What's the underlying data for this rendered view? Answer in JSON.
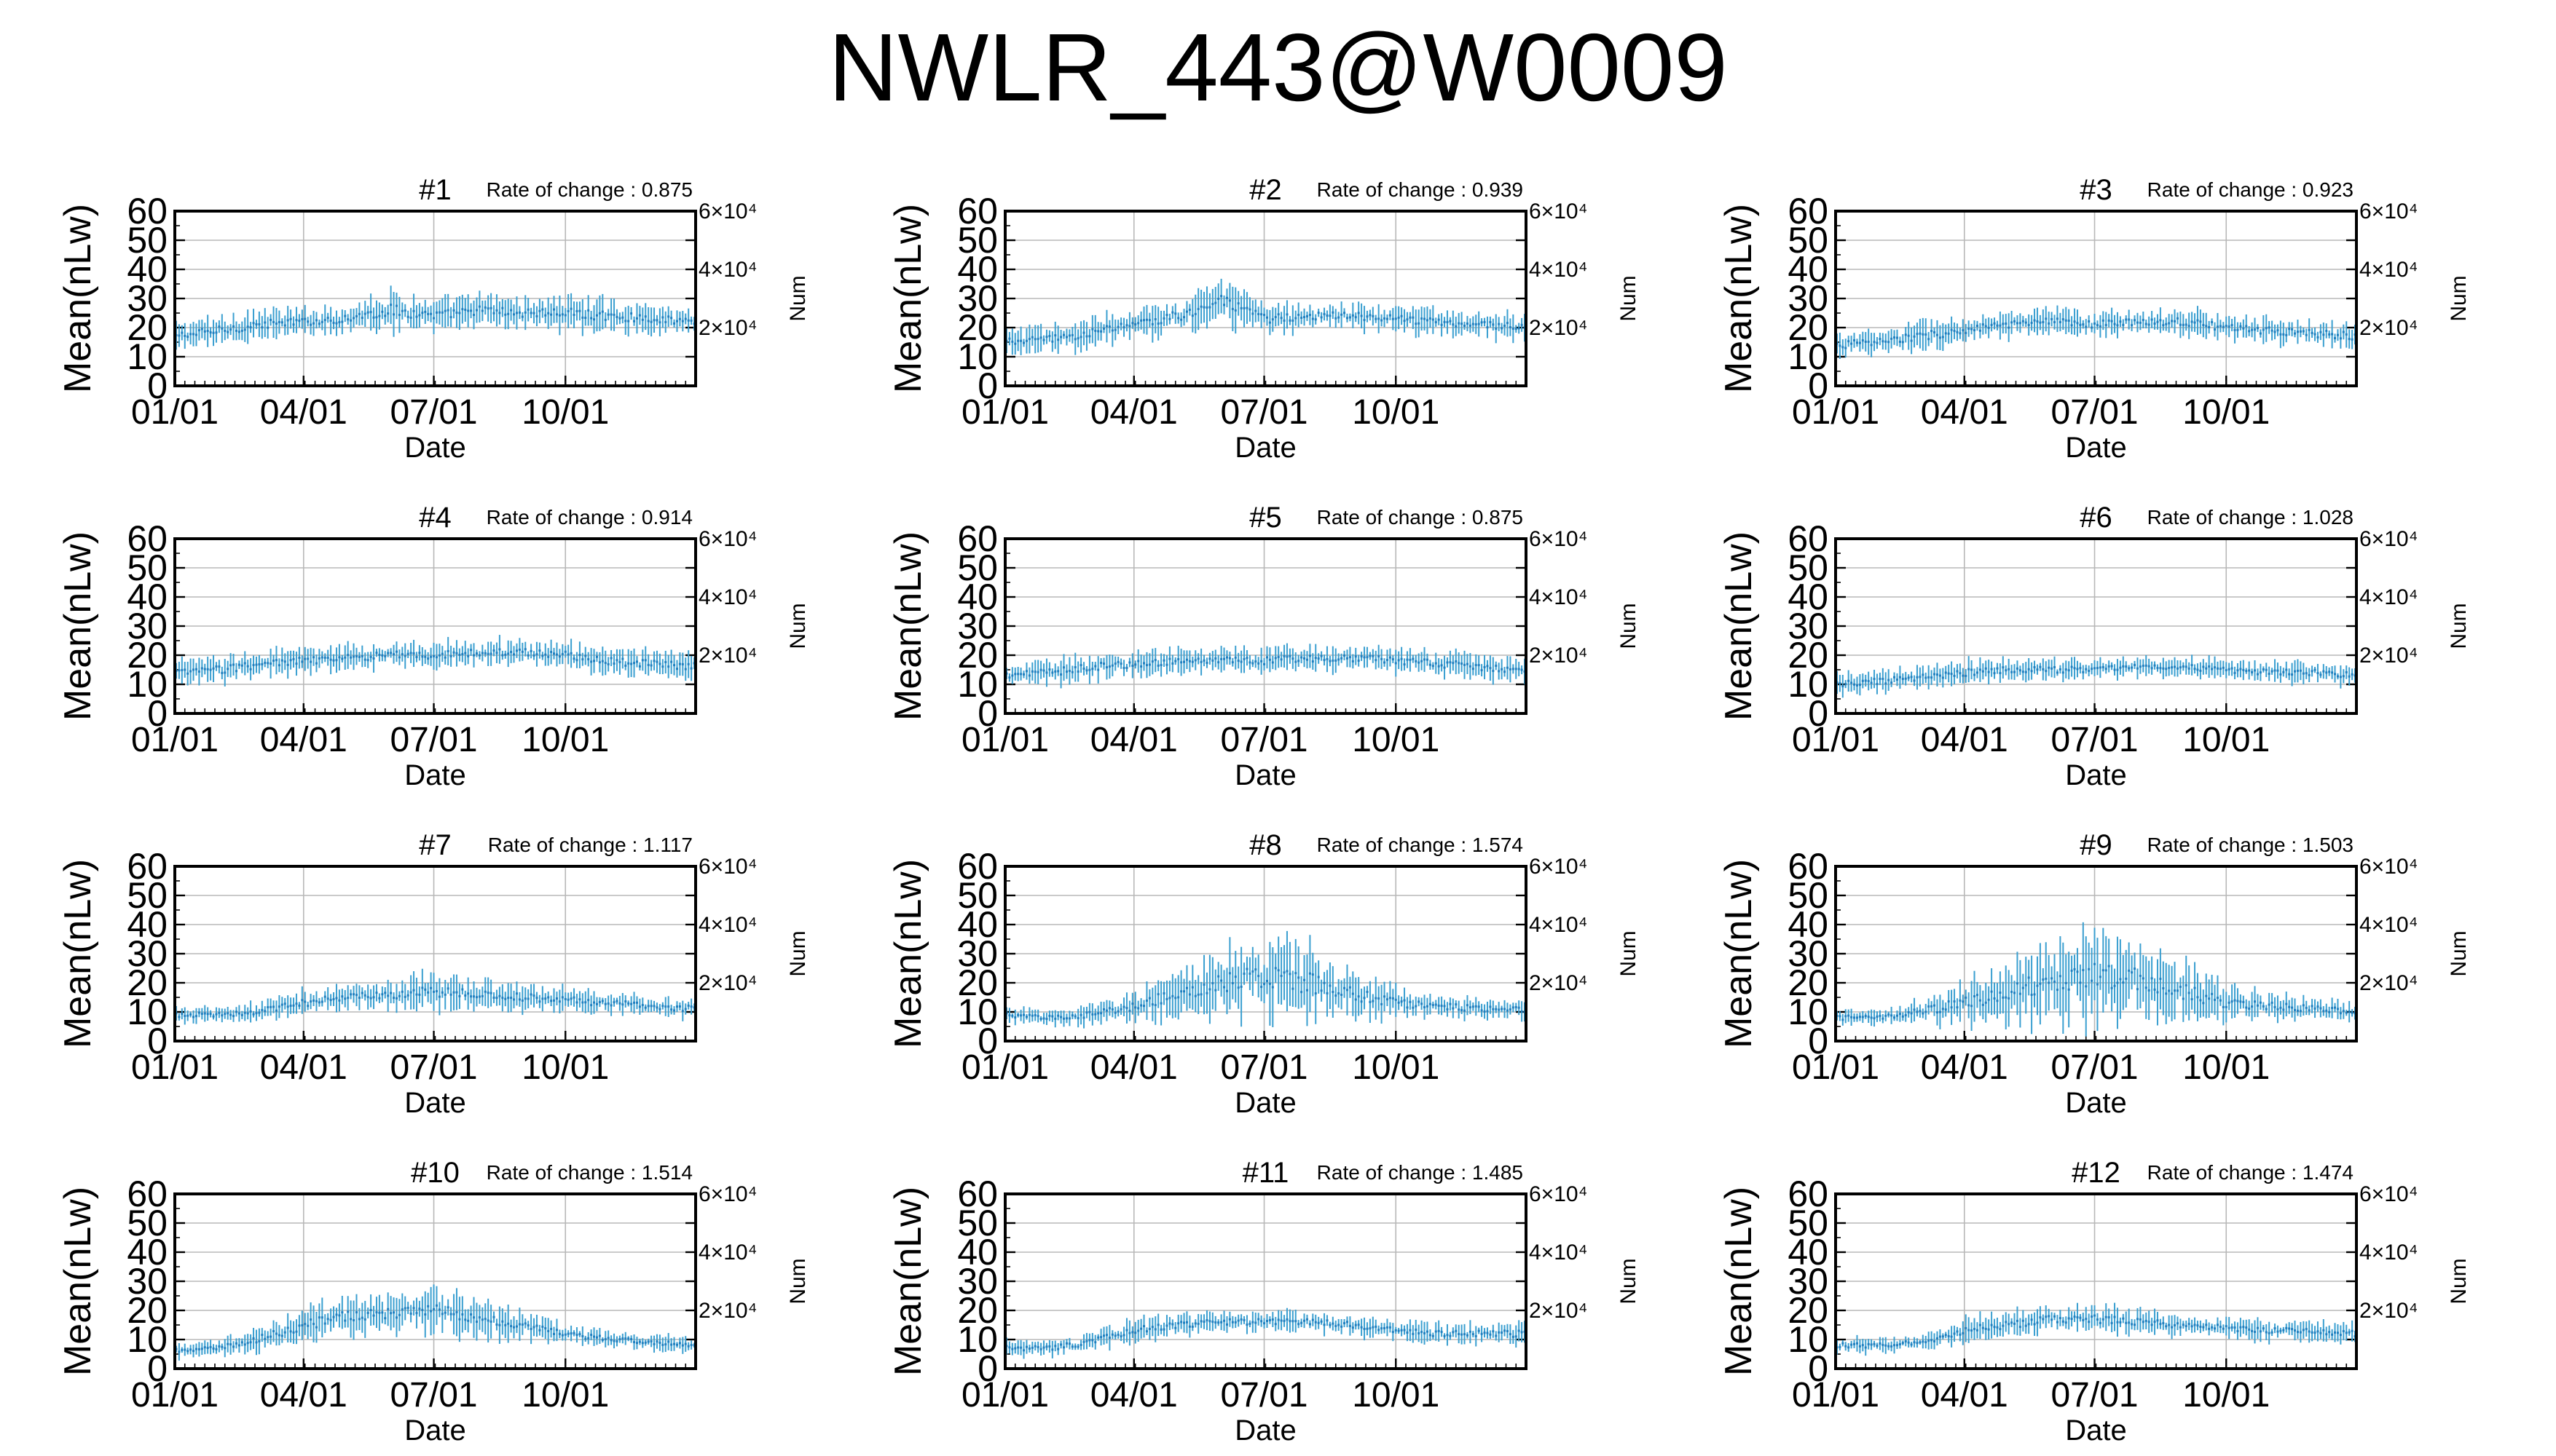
{
  "page": {
    "title": "NWLR_443@W0009"
  },
  "axis_text": {
    "ylabel": "Mean(nLw)",
    "xlabel": "Date",
    "right_label": "Num",
    "y_ticks": [
      "0",
      "10",
      "20",
      "30",
      "40",
      "50",
      "60"
    ],
    "x_ticks": [
      "01/01",
      "04/01",
      "07/01",
      "10/01"
    ],
    "right_ticks": [
      "2×10⁴",
      "4×10⁴",
      "6×10⁴"
    ]
  },
  "colors": {
    "series": "#3a9fd0",
    "grid": "#b8b8b8",
    "frame": "#000000"
  },
  "chart_data": [
    {
      "type": "errorbar",
      "title": "#1",
      "rate_text": "Rate of change : 0.875",
      "ylim": [
        0,
        60
      ],
      "x_ticks": [
        "01/01",
        "04/01",
        "07/01",
        "10/01"
      ],
      "right_ticks": [
        20000,
        40000,
        60000
      ],
      "x": [
        "01/01",
        "02/01",
        "03/01",
        "04/01",
        "05/01",
        "06/01",
        "07/01",
        "08/01",
        "09/01",
        "10/01",
        "11/01",
        "12/01",
        "12/31"
      ],
      "mean": [
        17,
        19,
        21,
        22,
        23,
        26,
        24,
        26,
        25,
        25,
        24,
        23,
        22
      ],
      "spread": [
        5,
        6,
        6,
        5,
        6,
        8,
        6,
        6,
        6,
        7,
        6,
        5,
        5
      ]
    },
    {
      "type": "errorbar",
      "title": "#2",
      "rate_text": "Rate of change : 0.939",
      "ylim": [
        0,
        60
      ],
      "x_ticks": [
        "01/01",
        "04/01",
        "07/01",
        "10/01"
      ],
      "right_ticks": [
        20000,
        40000,
        60000
      ],
      "x": [
        "01/01",
        "02/01",
        "03/01",
        "04/01",
        "05/01",
        "06/01",
        "07/01",
        "08/01",
        "09/01",
        "10/01",
        "11/01",
        "12/01",
        "12/31"
      ],
      "mean": [
        15,
        16,
        18,
        21,
        24,
        29,
        23,
        24,
        24,
        23,
        22,
        21,
        20
      ],
      "spread": [
        5,
        5,
        6,
        6,
        7,
        9,
        6,
        5,
        5,
        5,
        5,
        5,
        5
      ]
    },
    {
      "type": "errorbar",
      "title": "#3",
      "rate_text": "Rate of change : 0.923",
      "ylim": [
        0,
        60
      ],
      "x_ticks": [
        "01/01",
        "04/01",
        "07/01",
        "10/01"
      ],
      "right_ticks": [
        20000,
        40000,
        60000
      ],
      "x": [
        "01/01",
        "02/01",
        "03/01",
        "04/01",
        "05/01",
        "06/01",
        "07/01",
        "08/01",
        "09/01",
        "10/01",
        "11/01",
        "12/01",
        "12/31"
      ],
      "mean": [
        14,
        15,
        17,
        19,
        21,
        22,
        21,
        22,
        22,
        20,
        19,
        18,
        17
      ],
      "spread": [
        5,
        5,
        6,
        5,
        5,
        5,
        5,
        5,
        5,
        5,
        5,
        5,
        5
      ]
    },
    {
      "type": "errorbar",
      "title": "#4",
      "rate_text": "Rate of change : 0.914",
      "ylim": [
        0,
        60
      ],
      "x_ticks": [
        "01/01",
        "04/01",
        "07/01",
        "10/01"
      ],
      "right_ticks": [
        20000,
        40000,
        60000
      ],
      "x": [
        "01/01",
        "02/01",
        "03/01",
        "04/01",
        "05/01",
        "06/01",
        "07/01",
        "08/01",
        "09/01",
        "10/01",
        "11/01",
        "12/01",
        "12/31"
      ],
      "mean": [
        14,
        15,
        17,
        18,
        19,
        20,
        20,
        21,
        21,
        20,
        18,
        17,
        16
      ],
      "spread": [
        5,
        5,
        6,
        5,
        5,
        5,
        5,
        5,
        5,
        5,
        5,
        5,
        5
      ]
    },
    {
      "type": "errorbar",
      "title": "#5",
      "rate_text": "Rate of change : 0.875",
      "ylim": [
        0,
        60
      ],
      "x_ticks": [
        "01/01",
        "04/01",
        "07/01",
        "10/01"
      ],
      "right_ticks": [
        20000,
        40000,
        60000
      ],
      "x": [
        "01/01",
        "02/01",
        "03/01",
        "04/01",
        "05/01",
        "06/01",
        "07/01",
        "08/01",
        "09/01",
        "10/01",
        "11/01",
        "12/01",
        "12/31"
      ],
      "mean": [
        13,
        14,
        16,
        17,
        18,
        18,
        18,
        19,
        19,
        18,
        17,
        16,
        15
      ],
      "spread": [
        5,
        5,
        5,
        5,
        5,
        5,
        5,
        5,
        5,
        5,
        5,
        5,
        5
      ]
    },
    {
      "type": "errorbar",
      "title": "#6",
      "rate_text": "Rate of change : 1.028",
      "ylim": [
        0,
        60
      ],
      "x_ticks": [
        "01/01",
        "04/01",
        "07/01",
        "10/01"
      ],
      "right_ticks": [
        20000,
        40000,
        60000
      ],
      "x": [
        "01/01",
        "02/01",
        "03/01",
        "04/01",
        "05/01",
        "06/01",
        "07/01",
        "08/01",
        "09/01",
        "10/01",
        "11/01",
        "12/01",
        "12/31"
      ],
      "mean": [
        10,
        11,
        12,
        14,
        15,
        15,
        15,
        16,
        16,
        15,
        14,
        14,
        13
      ],
      "spread": [
        4,
        4,
        5,
        5,
        4,
        4,
        4,
        4,
        4,
        4,
        4,
        4,
        4
      ]
    },
    {
      "type": "errorbar",
      "title": "#7",
      "rate_text": "Rate of change : 1.117",
      "ylim": [
        0,
        60
      ],
      "x_ticks": [
        "01/01",
        "04/01",
        "07/01",
        "10/01"
      ],
      "right_ticks": [
        20000,
        40000,
        60000
      ],
      "x": [
        "01/01",
        "02/01",
        "03/01",
        "04/01",
        "05/01",
        "06/01",
        "07/01",
        "08/01",
        "09/01",
        "10/01",
        "11/01",
        "12/01",
        "12/31"
      ],
      "mean": [
        9,
        9,
        10,
        13,
        15,
        16,
        17,
        16,
        15,
        14,
        13,
        12,
        11
      ],
      "spread": [
        3,
        3,
        4,
        5,
        5,
        6,
        7,
        6,
        5,
        5,
        4,
        4,
        4
      ]
    },
    {
      "type": "errorbar",
      "title": "#8",
      "rate_text": "Rate of change : 1.574",
      "ylim": [
        0,
        60
      ],
      "x_ticks": [
        "01/01",
        "04/01",
        "07/01",
        "10/01"
      ],
      "right_ticks": [
        20000,
        40000,
        60000
      ],
      "x": [
        "01/01",
        "02/01",
        "03/01",
        "04/01",
        "05/01",
        "06/01",
        "07/01",
        "08/01",
        "09/01",
        "10/01",
        "11/01",
        "12/01",
        "12/31"
      ],
      "mean": [
        9,
        8,
        9,
        12,
        16,
        20,
        22,
        20,
        16,
        13,
        12,
        11,
        11
      ],
      "spread": [
        3,
        3,
        4,
        6,
        9,
        13,
        15,
        14,
        9,
        6,
        4,
        4,
        4
      ]
    },
    {
      "type": "errorbar",
      "title": "#9",
      "rate_text": "Rate of change : 1.503",
      "ylim": [
        0,
        60
      ],
      "x_ticks": [
        "01/01",
        "04/01",
        "07/01",
        "10/01"
      ],
      "right_ticks": [
        20000,
        40000,
        60000
      ],
      "x": [
        "01/01",
        "02/01",
        "03/01",
        "04/01",
        "05/01",
        "06/01",
        "07/01",
        "08/01",
        "09/01",
        "10/01",
        "11/01",
        "12/01",
        "12/31"
      ],
      "mean": [
        8,
        8,
        10,
        13,
        17,
        21,
        23,
        21,
        17,
        13,
        12,
        11,
        10
      ],
      "spread": [
        3,
        3,
        5,
        8,
        12,
        16,
        18,
        15,
        11,
        7,
        5,
        4,
        4
      ]
    },
    {
      "type": "errorbar",
      "title": "#10",
      "rate_text": "Rate of change : 1.514",
      "ylim": [
        0,
        60
      ],
      "x_ticks": [
        "01/01",
        "04/01",
        "07/01",
        "10/01"
      ],
      "right_ticks": [
        20000,
        40000,
        60000
      ],
      "x": [
        "01/01",
        "02/01",
        "03/01",
        "04/01",
        "05/01",
        "06/01",
        "07/01",
        "08/01",
        "09/01",
        "10/01",
        "11/01",
        "12/01",
        "12/31"
      ],
      "mean": [
        6,
        7,
        10,
        15,
        18,
        19,
        20,
        18,
        15,
        12,
        10,
        9,
        8
      ],
      "spread": [
        3,
        3,
        5,
        7,
        7,
        7,
        9,
        8,
        6,
        4,
        3,
        3,
        3
      ]
    },
    {
      "type": "errorbar",
      "title": "#11",
      "rate_text": "Rate of change : 1.485",
      "ylim": [
        0,
        60
      ],
      "x_ticks": [
        "01/01",
        "04/01",
        "07/01",
        "10/01"
      ],
      "right_ticks": [
        20000,
        40000,
        60000
      ],
      "x": [
        "01/01",
        "02/01",
        "03/01",
        "04/01",
        "05/01",
        "06/01",
        "07/01",
        "08/01",
        "09/01",
        "10/01",
        "11/01",
        "12/01",
        "12/31"
      ],
      "mean": [
        7,
        7,
        9,
        13,
        15,
        16,
        16,
        16,
        15,
        13,
        12,
        12,
        12
      ],
      "spread": [
        3,
        3,
        4,
        5,
        4,
        4,
        4,
        4,
        4,
        4,
        4,
        4,
        5
      ]
    },
    {
      "type": "errorbar",
      "title": "#12",
      "rate_text": "Rate of change : 1.474",
      "ylim": [
        0,
        60
      ],
      "x_ticks": [
        "01/01",
        "04/01",
        "07/01",
        "10/01"
      ],
      "right_ticks": [
        20000,
        40000,
        60000
      ],
      "x": [
        "01/01",
        "02/01",
        "03/01",
        "04/01",
        "05/01",
        "06/01",
        "07/01",
        "08/01",
        "09/01",
        "10/01",
        "11/01",
        "12/01",
        "12/31"
      ],
      "mean": [
        8,
        8,
        9,
        13,
        15,
        17,
        17,
        16,
        15,
        14,
        13,
        13,
        12
      ],
      "spread": [
        3,
        3,
        3,
        5,
        5,
        5,
        5,
        5,
        4,
        4,
        4,
        4,
        4
      ]
    }
  ]
}
